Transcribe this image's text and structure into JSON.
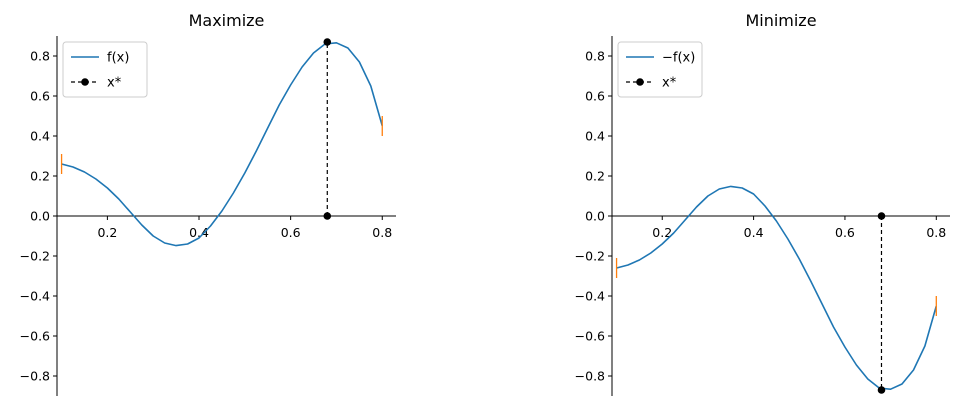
{
  "chart_data": [
    {
      "type": "line",
      "title": "Maximize",
      "xlabel": "",
      "ylabel": "",
      "xlim": [
        0.09,
        0.83
      ],
      "ylim": [
        -0.9,
        0.9
      ],
      "xticks": [
        0.2,
        0.4,
        0.6,
        0.8
      ],
      "xtick_labels": [
        "0.2",
        "0.4",
        "0.6",
        "0.8"
      ],
      "yticks": [
        -0.8,
        -0.6,
        -0.4,
        -0.2,
        0.0,
        0.2,
        0.4,
        0.6,
        0.8
      ],
      "ytick_labels": [
        "−0.8",
        "−0.6",
        "−0.4",
        "−0.2",
        "0.0",
        "0.2",
        "0.4",
        "0.6",
        "0.8"
      ],
      "legend_position": "top-left",
      "series": [
        {
          "name": "f(x)",
          "color": "#1f77b4",
          "x": [
            0.1,
            0.125,
            0.15,
            0.175,
            0.2,
            0.225,
            0.25,
            0.275,
            0.3,
            0.325,
            0.35,
            0.375,
            0.4,
            0.425,
            0.45,
            0.475,
            0.5,
            0.525,
            0.55,
            0.575,
            0.6,
            0.625,
            0.65,
            0.675,
            0.7,
            0.725,
            0.75,
            0.775,
            0.8
          ],
          "y": [
            0.26,
            0.245,
            0.22,
            0.185,
            0.14,
            0.085,
            0.02,
            -0.045,
            -0.1,
            -0.135,
            -0.148,
            -0.14,
            -0.11,
            -0.05,
            0.025,
            0.115,
            0.215,
            0.325,
            0.44,
            0.555,
            0.655,
            0.745,
            0.815,
            0.86,
            0.866,
            0.84,
            0.77,
            0.65,
            0.45
          ]
        },
        {
          "name": "x*",
          "color": "#000000",
          "x": [
            0.68,
            0.68
          ],
          "y": [
            0.0,
            0.87
          ]
        }
      ],
      "boundary_marks": {
        "color": "#ff7f0e",
        "points": [
          [
            0.1,
            0.26
          ],
          [
            0.8,
            0.45
          ]
        ]
      }
    },
    {
      "type": "line",
      "title": "Minimize",
      "xlabel": "",
      "ylabel": "",
      "xlim": [
        0.09,
        0.83
      ],
      "ylim": [
        -0.9,
        0.9
      ],
      "xticks": [
        0.2,
        0.4,
        0.6,
        0.8
      ],
      "xtick_labels": [
        "0.2",
        "0.4",
        "0.6",
        "0.8"
      ],
      "yticks": [
        -0.8,
        -0.6,
        -0.4,
        -0.2,
        0.0,
        0.2,
        0.4,
        0.6,
        0.8
      ],
      "ytick_labels": [
        "−0.8",
        "−0.6",
        "−0.4",
        "−0.2",
        "0.0",
        "0.2",
        "0.4",
        "0.6",
        "0.8"
      ],
      "legend_position": "top-left",
      "series": [
        {
          "name": "−f(x)",
          "color": "#1f77b4",
          "x": [
            0.1,
            0.125,
            0.15,
            0.175,
            0.2,
            0.225,
            0.25,
            0.275,
            0.3,
            0.325,
            0.35,
            0.375,
            0.4,
            0.425,
            0.45,
            0.475,
            0.5,
            0.525,
            0.55,
            0.575,
            0.6,
            0.625,
            0.65,
            0.675,
            0.7,
            0.725,
            0.75,
            0.775,
            0.8
          ],
          "y": [
            -0.26,
            -0.245,
            -0.22,
            -0.185,
            -0.14,
            -0.085,
            -0.02,
            0.045,
            0.1,
            0.135,
            0.148,
            0.14,
            0.11,
            0.05,
            -0.025,
            -0.115,
            -0.215,
            -0.325,
            -0.44,
            -0.555,
            -0.655,
            -0.745,
            -0.815,
            -0.86,
            -0.866,
            -0.84,
            -0.77,
            -0.65,
            -0.45
          ]
        },
        {
          "name": "x*",
          "color": "#000000",
          "x": [
            0.68,
            0.68
          ],
          "y": [
            0.0,
            -0.87
          ]
        }
      ],
      "boundary_marks": {
        "color": "#ff7f0e",
        "points": [
          [
            0.1,
            -0.26
          ],
          [
            0.8,
            -0.45
          ]
        ]
      }
    }
  ]
}
